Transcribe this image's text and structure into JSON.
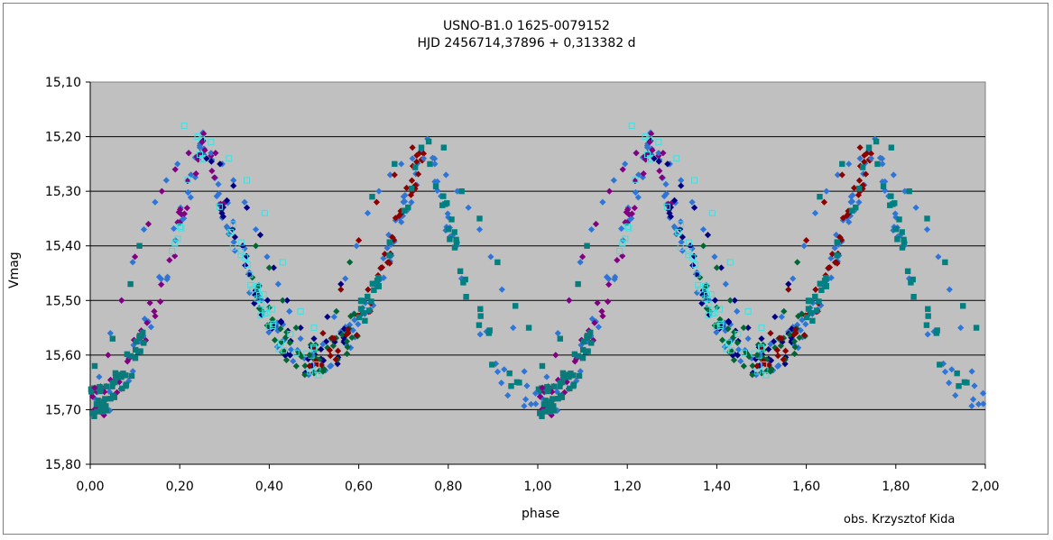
{
  "chart_data": {
    "type": "scatter",
    "title": "USNO-B1.0 1625-0079152",
    "subtitle": "HJD 2456714,37896 + 0,313382 d",
    "xlabel": "phase",
    "ylabel": "Vmag",
    "credit": "obs. Krzysztof Kida",
    "xlim": [
      0.0,
      2.0
    ],
    "ylim": [
      15.8,
      15.1
    ],
    "y_inverted": true,
    "x_ticks": [
      "0,00",
      "0,20",
      "0,40",
      "0,60",
      "0,80",
      "1,00",
      "1,20",
      "1,40",
      "1,60",
      "1,80",
      "2,00"
    ],
    "y_ticks": [
      "15,10",
      "15,20",
      "15,30",
      "15,40",
      "15,50",
      "15,60",
      "15,70",
      "15,80"
    ],
    "grid": "horizontal",
    "plot_background": "#c0c0c0",
    "light_curve_model": {
      "period_days": 0.313382,
      "max_mag": 15.21,
      "primary_min_mag": 15.69,
      "secondary_min_mag": 15.61,
      "primary_min_phase": 0.0,
      "secondary_min_phase": 0.5,
      "max_phases": [
        0.25,
        0.75
      ]
    },
    "series": [
      {
        "marker": "diamond",
        "color": "#2e75d6",
        "phases": [
          0.0,
          1.0
        ],
        "note": "full cycle"
      },
      {
        "marker": "diamond",
        "color": "#800080",
        "phases": [
          0.0,
          0.3
        ]
      },
      {
        "marker": "diamond",
        "color": "#000080",
        "phases": [
          0.25,
          0.58
        ]
      },
      {
        "marker": "diamond",
        "color": "#006633",
        "phases": [
          0.36,
          0.6
        ]
      },
      {
        "marker": "diamond",
        "color": "#8b0000",
        "phases": [
          0.48,
          0.75
        ]
      },
      {
        "marker": "square",
        "color": "#008080",
        "phases": [
          0.6,
          1.0
        ]
      },
      {
        "marker": "square",
        "color": "#0a7a7a",
        "phases": [
          0.0,
          0.12
        ]
      },
      {
        "marker": "open-square",
        "color": "#3ee0e0",
        "phases": [
          0.18,
          0.52
        ]
      }
    ],
    "points": [
      [
        0.02,
        15.64,
        0
      ],
      [
        0.045,
        15.56,
        0
      ],
      [
        0.07,
        15.5,
        0
      ],
      [
        0.095,
        15.43,
        0
      ],
      [
        0.12,
        15.37,
        0
      ],
      [
        0.145,
        15.32,
        0
      ],
      [
        0.17,
        15.28,
        0
      ],
      [
        0.195,
        15.25,
        0
      ],
      [
        0.22,
        15.23,
        0
      ],
      [
        0.245,
        15.22,
        0
      ],
      [
        0.27,
        15.23,
        0
      ],
      [
        0.295,
        15.25,
        0
      ],
      [
        0.32,
        15.28,
        0
      ],
      [
        0.345,
        15.32,
        0
      ],
      [
        0.37,
        15.37,
        0
      ],
      [
        0.395,
        15.42,
        0
      ],
      [
        0.42,
        15.47,
        0
      ],
      [
        0.445,
        15.52,
        0
      ],
      [
        0.47,
        15.57,
        0
      ],
      [
        0.495,
        15.6,
        0
      ],
      [
        0.52,
        15.58,
        0
      ],
      [
        0.545,
        15.53,
        0
      ],
      [
        0.57,
        15.46,
        0
      ],
      [
        0.595,
        15.4,
        0
      ],
      [
        0.62,
        15.34,
        0
      ],
      [
        0.645,
        15.3,
        0
      ],
      [
        0.67,
        15.27,
        0
      ],
      [
        0.695,
        15.25,
        0
      ],
      [
        0.72,
        15.24,
        0
      ],
      [
        0.745,
        15.24,
        0
      ],
      [
        0.77,
        15.25,
        0
      ],
      [
        0.795,
        15.27,
        0
      ],
      [
        0.82,
        15.3,
        0
      ],
      [
        0.845,
        15.33,
        0
      ],
      [
        0.87,
        15.37,
        0
      ],
      [
        0.895,
        15.42,
        0
      ],
      [
        0.92,
        15.48,
        0
      ],
      [
        0.945,
        15.55,
        0
      ],
      [
        0.97,
        15.63,
        0
      ],
      [
        0.985,
        15.69,
        0
      ],
      [
        0.995,
        15.67,
        0
      ],
      [
        0.01,
        15.66,
        1
      ],
      [
        0.04,
        15.6,
        1
      ],
      [
        0.07,
        15.5,
        1
      ],
      [
        0.1,
        15.42,
        1
      ],
      [
        0.13,
        15.36,
        1
      ],
      [
        0.16,
        15.3,
        1
      ],
      [
        0.19,
        15.26,
        1
      ],
      [
        0.22,
        15.23,
        1
      ],
      [
        0.25,
        15.21,
        1
      ],
      [
        0.28,
        15.23,
        1
      ],
      [
        0.26,
        15.24,
        2
      ],
      [
        0.29,
        15.25,
        2
      ],
      [
        0.32,
        15.29,
        2
      ],
      [
        0.35,
        15.33,
        2
      ],
      [
        0.38,
        15.38,
        2
      ],
      [
        0.41,
        15.44,
        2
      ],
      [
        0.44,
        15.5,
        2
      ],
      [
        0.47,
        15.55,
        2
      ],
      [
        0.5,
        15.57,
        2
      ],
      [
        0.53,
        15.53,
        2
      ],
      [
        0.56,
        15.47,
        2
      ],
      [
        0.37,
        15.4,
        3
      ],
      [
        0.4,
        15.44,
        3
      ],
      [
        0.43,
        15.5,
        3
      ],
      [
        0.46,
        15.55,
        3
      ],
      [
        0.49,
        15.6,
        3
      ],
      [
        0.52,
        15.63,
        3
      ],
      [
        0.55,
        15.52,
        3
      ],
      [
        0.58,
        15.43,
        3
      ],
      [
        0.49,
        15.62,
        4
      ],
      [
        0.52,
        15.56,
        4
      ],
      [
        0.56,
        15.48,
        4
      ],
      [
        0.6,
        15.39,
        4
      ],
      [
        0.64,
        15.32,
        4
      ],
      [
        0.68,
        15.27,
        4
      ],
      [
        0.72,
        15.22,
        4
      ],
      [
        0.63,
        15.31,
        5
      ],
      [
        0.68,
        15.25,
        5
      ],
      [
        0.74,
        15.22,
        5
      ],
      [
        0.79,
        15.22,
        5
      ],
      [
        0.83,
        15.3,
        5
      ],
      [
        0.87,
        15.35,
        5
      ],
      [
        0.91,
        15.43,
        5
      ],
      [
        0.95,
        15.51,
        5
      ],
      [
        0.98,
        15.55,
        5
      ],
      [
        0.01,
        15.62,
        6
      ],
      [
        0.05,
        15.57,
        6
      ],
      [
        0.09,
        15.47,
        6
      ],
      [
        0.11,
        15.4,
        6
      ],
      [
        0.21,
        15.18,
        7
      ],
      [
        0.24,
        15.2,
        7
      ],
      [
        0.27,
        15.21,
        7
      ],
      [
        0.31,
        15.24,
        7
      ],
      [
        0.35,
        15.28,
        7
      ],
      [
        0.39,
        15.34,
        7
      ],
      [
        0.43,
        15.43,
        7
      ],
      [
        0.47,
        15.52,
        7
      ],
      [
        0.5,
        15.55,
        7
      ]
    ]
  }
}
